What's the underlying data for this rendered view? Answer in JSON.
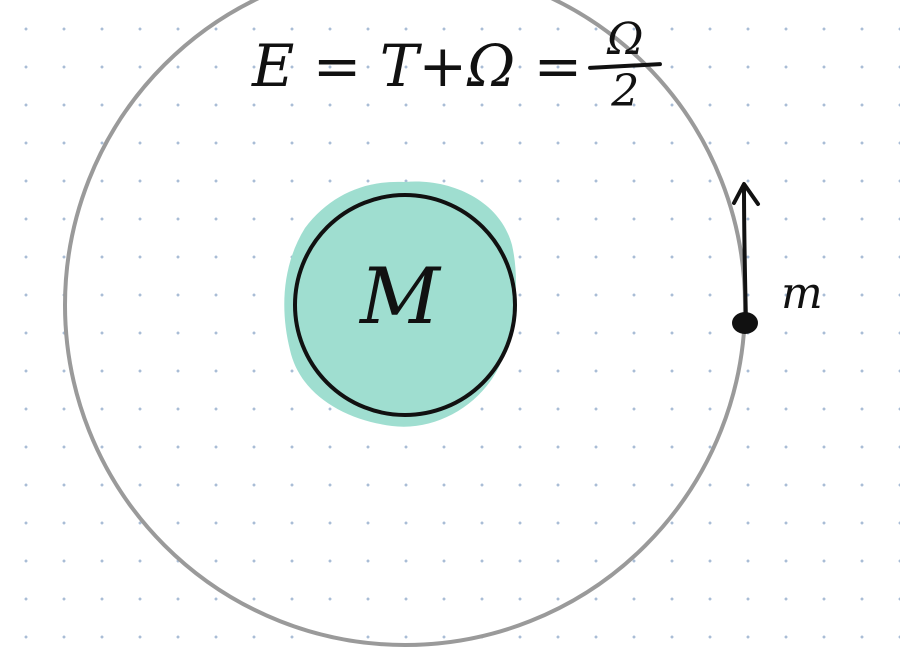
{
  "diagram": {
    "equation": {
      "lhs": "E = T+Ω =",
      "numerator": "Ω",
      "denominator": "2"
    },
    "central_mass_label": "M",
    "orbiting_mass_label": "m",
    "colors": {
      "orbit": "#9a9a9a",
      "central_fill": "#9fded0",
      "ink": "#111111",
      "dot_grid": "#a9bdd6",
      "background": "#ffffff"
    },
    "icons": {
      "velocity_arrow": "up-arrow-icon"
    }
  }
}
